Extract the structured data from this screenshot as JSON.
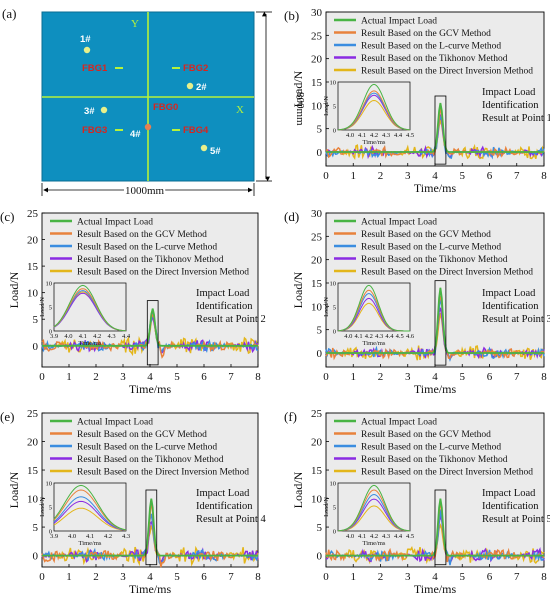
{
  "schematic": {
    "panel_label": "(a)",
    "axis_y": "Y",
    "axis_x": "X",
    "width_label": "1000mm",
    "height_label": "800mm",
    "fbg_labels": [
      "FBG1",
      "FBG2",
      "FBG0",
      "FBG3",
      "FBG4"
    ],
    "point_labels": [
      "1#",
      "2#",
      "3#",
      "4#",
      "5#"
    ],
    "colors": {
      "plate": "#0e8fbf",
      "axis": "#b6f23a",
      "fbg_text": "#d8261f",
      "point_text": "#ffffff",
      "point_dot": "#e8f08a"
    }
  },
  "legend_labels": [
    "Actual Impact Load",
    "Result Based on the GCV Method",
    "Result Based on the L-curve Method",
    "Result Based on the Tikhonov Method",
    "Result Based on the Direct Inversion Method"
  ],
  "series_colors": [
    "#49b444",
    "#e8823c",
    "#3b8de0",
    "#8a2be2",
    "#e3b61b"
  ],
  "inset_ylabel": "Load/N",
  "inset_xlabel": "Time/ms",
  "chart_data": [
    {
      "type": "line",
      "panel": "(b)",
      "xlabel": "Time/ms",
      "ylabel": "Load/N",
      "xlim": [
        0,
        8
      ],
      "ylim": [
        -3,
        30
      ],
      "xticks": [
        0,
        1,
        2,
        3,
        4,
        5,
        6,
        7,
        8
      ],
      "yticks": [
        0,
        5,
        10,
        15,
        20,
        25,
        30
      ],
      "annotation": [
        "Impact Load",
        "Identification",
        "Result at Point 1"
      ],
      "peak_time": 4.2,
      "peaks": [
        10.5,
        9.0,
        8.5,
        8.0,
        6.8
      ],
      "inset": {
        "xlim": [
          3.9,
          4.5
        ],
        "xticks": [
          "4.0",
          "4.1",
          "4.2",
          "4.3",
          "4.4",
          "4.5"
        ],
        "ylim": [
          0,
          10
        ],
        "yticks": [
          "0",
          "5",
          "10"
        ]
      }
    },
    {
      "type": "line",
      "panel": "(c)",
      "xlabel": "Time/ms",
      "ylabel": "Load/N",
      "xlim": [
        0,
        8
      ],
      "ylim": [
        -4,
        25
      ],
      "xticks": [
        0,
        1,
        2,
        3,
        4,
        5,
        6,
        7,
        8
      ],
      "yticks": [
        0,
        5,
        10,
        15,
        20,
        25
      ],
      "annotation": [
        "Impact Load",
        "Identification",
        "Result at Point 2"
      ],
      "peak_time": 4.1,
      "peaks": [
        7.0,
        6.5,
        6.2,
        5.8,
        6.0
      ],
      "inset": {
        "xlim": [
          3.9,
          4.4
        ],
        "xticks": [
          "3.9",
          "4.0",
          "4.1",
          "4.2",
          "4.3",
          "4.4"
        ],
        "ylim": [
          0,
          10
        ],
        "yticks": [
          "0",
          "5",
          "10"
        ]
      }
    },
    {
      "type": "line",
      "panel": "(d)",
      "xlabel": "Time/ms",
      "ylabel": "Load/N",
      "xlim": [
        0,
        8
      ],
      "ylim": [
        -3,
        30
      ],
      "xticks": [
        0,
        1,
        2,
        3,
        4,
        5,
        6,
        7,
        8
      ],
      "yticks": [
        0,
        5,
        10,
        15,
        20,
        25,
        30
      ],
      "annotation": [
        "Impact Load",
        "Identification",
        "Result at Point 3"
      ],
      "peak_time": 4.2,
      "peaks": [
        14.0,
        12.5,
        11.5,
        10.0,
        8.5
      ],
      "inset": {
        "xlim": [
          3.9,
          4.6
        ],
        "xticks": [
          "4.0",
          "4.1",
          "4.2",
          "4.3",
          "4.4",
          "4.5",
          "4.6"
        ],
        "ylim": [
          0,
          10
        ],
        "yticks": [
          "0",
          "5",
          "10"
        ]
      }
    },
    {
      "type": "line",
      "panel": "(e)",
      "xlabel": "Time/ms",
      "ylabel": "Load/N",
      "xlim": [
        0,
        8
      ],
      "ylim": [
        -2,
        25
      ],
      "xticks": [
        0,
        1,
        2,
        3,
        4,
        5,
        6,
        7,
        8
      ],
      "yticks": [
        0,
        5,
        10,
        15,
        20,
        25
      ],
      "annotation": [
        "Impact Load",
        "Identification",
        "Result at Point 4"
      ],
      "peak_time": 4.05,
      "peaks": [
        10.0,
        9.0,
        7.5,
        6.5,
        5.0
      ],
      "inset": {
        "xlim": [
          3.9,
          4.3
        ],
        "xticks": [
          "3.9",
          "4.0",
          "4.1",
          "4.2",
          "4.3"
        ],
        "ylim": [
          0,
          10
        ],
        "yticks": [
          "0",
          "5",
          "10"
        ]
      }
    },
    {
      "type": "line",
      "panel": "(f)",
      "xlabel": "Time/ms",
      "ylabel": "Load/N",
      "xlim": [
        0,
        8
      ],
      "ylim": [
        -2,
        25
      ],
      "xticks": [
        0,
        1,
        2,
        3,
        4,
        5,
        6,
        7,
        8
      ],
      "yticks": [
        0,
        5,
        10,
        15,
        20,
        25
      ],
      "annotation": [
        "Impact Load",
        "Identification",
        "Result at Point 5"
      ],
      "peak_time": 4.2,
      "peaks": [
        10.0,
        9.0,
        8.0,
        7.0,
        5.5
      ],
      "inset": {
        "xlim": [
          3.9,
          4.5
        ],
        "xticks": [
          "4.0",
          "4.1",
          "4.2",
          "4.3",
          "4.4",
          "4.5"
        ],
        "ylim": [
          0,
          10
        ],
        "yticks": [
          "0",
          "5",
          "10"
        ]
      }
    }
  ]
}
